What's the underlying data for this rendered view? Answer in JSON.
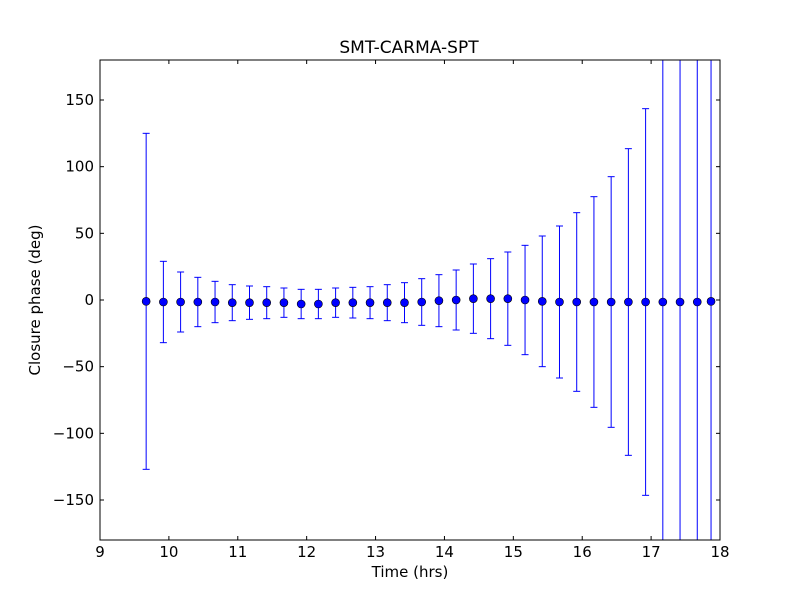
{
  "chart_data": {
    "type": "scatter",
    "title": "SMT-CARMA-SPT",
    "xlabel": "Time (hrs)",
    "ylabel": "Closure phase (deg)",
    "xlim": [
      9,
      18
    ],
    "ylim": [
      -180,
      180
    ],
    "xticks": [
      9,
      10,
      11,
      12,
      13,
      14,
      15,
      16,
      17,
      18
    ],
    "yticks": [
      -150,
      -100,
      -50,
      0,
      50,
      100,
      150
    ],
    "ytick_labels": [
      "−150",
      "−100",
      "−50",
      "0",
      "50",
      "100",
      "150"
    ],
    "grid": false,
    "legend": "none",
    "marker_color": "#0000ff",
    "errorbar_color": "#0000ff",
    "series": [
      {
        "x": [
          9.67,
          9.92,
          10.17,
          10.42,
          10.67,
          10.92,
          11.17,
          11.42,
          11.67,
          11.92,
          12.17,
          12.42,
          12.67,
          12.92,
          13.17,
          13.42,
          13.67,
          13.92,
          14.17,
          14.42,
          14.67,
          14.92,
          15.17,
          15.42,
          15.67,
          15.92,
          16.17,
          16.42,
          16.67,
          16.92,
          17.17,
          17.42,
          17.67,
          17.87
        ],
        "y": [
          -1,
          -1.5,
          -1.5,
          -1.5,
          -1.5,
          -2,
          -2,
          -2,
          -2,
          -3,
          -3,
          -2,
          -2,
          -2,
          -2,
          -2,
          -1.5,
          -0.5,
          0,
          1,
          1,
          1,
          0,
          -1,
          -1.5,
          -1.5,
          -1.5,
          -1.5,
          -1.5,
          -1.5,
          -1.5,
          -1.5,
          -1.5,
          -1
        ],
        "yerr": [
          126,
          30.5,
          22.5,
          18.5,
          15.5,
          13.5,
          12.5,
          12,
          11,
          11,
          11,
          11,
          11.5,
          12,
          13.5,
          15,
          17.5,
          19.5,
          22.5,
          26,
          30,
          35,
          41,
          49,
          57,
          67,
          79,
          94,
          115,
          145,
          240,
          240,
          240,
          240
        ]
      }
    ]
  }
}
